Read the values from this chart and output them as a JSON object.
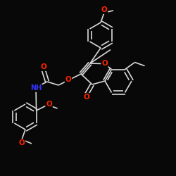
{
  "bg_color": "#080808",
  "bond_color": "#d8d8d8",
  "atom_O_color": "#ff2200",
  "atom_N_color": "#3333ff",
  "figsize": [
    2.5,
    2.5
  ],
  "dpi": 100,
  "xlim": [
    0,
    250
  ],
  "ylim": [
    0,
    250
  ]
}
